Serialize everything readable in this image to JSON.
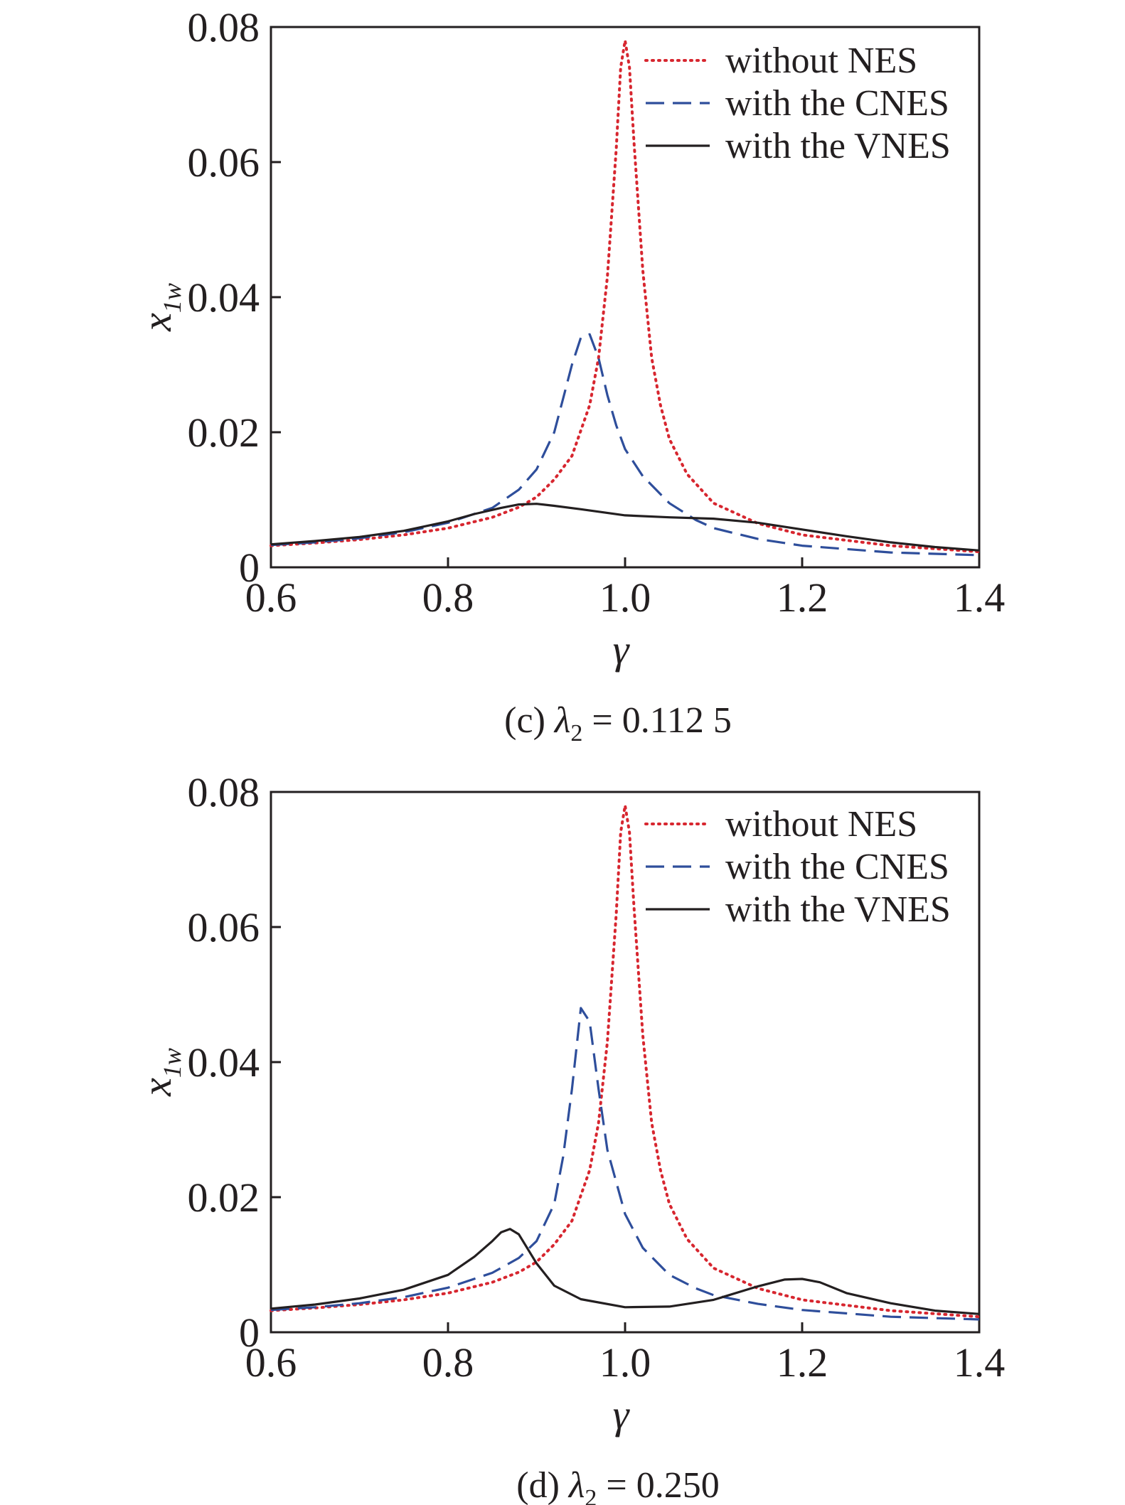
{
  "chart_data": [
    {
      "type": "line",
      "caption": {
        "prefix": "(c) ",
        "symbol": "λ",
        "subscript": "2",
        "value": " = 0.112 5"
      },
      "xlabel": "γ",
      "ylabel": {
        "base": "x",
        "subscript": "1w"
      },
      "xlim": [
        0.6,
        1.4
      ],
      "ylim": [
        0,
        0.08
      ],
      "xticks": [
        "0.6",
        "0.8",
        "1.0",
        "1.2",
        "1.4"
      ],
      "yticks": [
        "0",
        "0.02",
        "0.04",
        "0.06",
        "0.08"
      ],
      "grid": false,
      "legend": "top-right",
      "series": [
        {
          "name": "without NES",
          "color": "#d7262f",
          "style": "dotted",
          "x": [
            0.6,
            0.65,
            0.7,
            0.75,
            0.8,
            0.85,
            0.88,
            0.9,
            0.92,
            0.94,
            0.96,
            0.97,
            0.98,
            0.99,
            0.995,
            1.0,
            1.005,
            1.01,
            1.02,
            1.03,
            1.04,
            1.05,
            1.07,
            1.1,
            1.15,
            1.2,
            1.3,
            1.4
          ],
          "y": [
            0.0032,
            0.0036,
            0.0041,
            0.0048,
            0.0058,
            0.0074,
            0.0089,
            0.0104,
            0.013,
            0.0165,
            0.024,
            0.031,
            0.043,
            0.062,
            0.074,
            0.078,
            0.074,
            0.063,
            0.044,
            0.031,
            0.024,
            0.019,
            0.0138,
            0.0095,
            0.0065,
            0.0048,
            0.0032,
            0.0023
          ]
        },
        {
          "name": "with the CNES",
          "color": "#2e4e9b",
          "style": "dashed",
          "x": [
            0.6,
            0.65,
            0.7,
            0.75,
            0.8,
            0.85,
            0.88,
            0.9,
            0.92,
            0.93,
            0.94,
            0.95,
            0.96,
            0.97,
            0.98,
            0.99,
            1.0,
            1.02,
            1.05,
            1.08,
            1.1,
            1.15,
            1.2,
            1.3,
            1.4
          ],
          "y": [
            0.0033,
            0.0037,
            0.0043,
            0.0052,
            0.0066,
            0.0088,
            0.0115,
            0.0145,
            0.02,
            0.025,
            0.03,
            0.034,
            0.0345,
            0.031,
            0.0255,
            0.021,
            0.0175,
            0.0135,
            0.0095,
            0.007,
            0.0058,
            0.0042,
            0.0032,
            0.0022,
            0.0018
          ]
        },
        {
          "name": "with the VNES",
          "color": "#231f20",
          "style": "solid",
          "x": [
            0.6,
            0.65,
            0.7,
            0.75,
            0.8,
            0.83,
            0.86,
            0.88,
            0.9,
            0.92,
            0.95,
            1.0,
            1.05,
            1.1,
            1.15,
            1.2,
            1.25,
            1.3,
            1.35,
            1.4
          ],
          "y": [
            0.0034,
            0.0039,
            0.0045,
            0.0054,
            0.0068,
            0.0079,
            0.0088,
            0.0093,
            0.0094,
            0.0091,
            0.0086,
            0.0077,
            0.0074,
            0.0072,
            0.0066,
            0.0056,
            0.0046,
            0.0037,
            0.003,
            0.0025
          ]
        }
      ]
    },
    {
      "type": "line",
      "caption": {
        "prefix": "(d) ",
        "symbol": "λ",
        "subscript": "2",
        "value": " = 0.250"
      },
      "xlabel": "γ",
      "ylabel": {
        "base": "x",
        "subscript": "1w"
      },
      "xlim": [
        0.6,
        1.4
      ],
      "ylim": [
        0,
        0.08
      ],
      "xticks": [
        "0.6",
        "0.8",
        "1.0",
        "1.2",
        "1.4"
      ],
      "yticks": [
        "0",
        "0.02",
        "0.04",
        "0.06",
        "0.08"
      ],
      "grid": false,
      "legend": "top-right",
      "series": [
        {
          "name": "without NES",
          "color": "#d7262f",
          "style": "dotted",
          "x": [
            0.6,
            0.65,
            0.7,
            0.75,
            0.8,
            0.85,
            0.88,
            0.9,
            0.92,
            0.94,
            0.96,
            0.97,
            0.98,
            0.99,
            0.995,
            1.0,
            1.005,
            1.01,
            1.02,
            1.03,
            1.04,
            1.05,
            1.07,
            1.1,
            1.15,
            1.2,
            1.3,
            1.4
          ],
          "y": [
            0.0032,
            0.0036,
            0.0041,
            0.0048,
            0.0058,
            0.0074,
            0.0089,
            0.0104,
            0.013,
            0.0165,
            0.024,
            0.031,
            0.043,
            0.062,
            0.074,
            0.078,
            0.074,
            0.063,
            0.044,
            0.031,
            0.024,
            0.019,
            0.0138,
            0.0095,
            0.0065,
            0.0048,
            0.0032,
            0.0023
          ]
        },
        {
          "name": "with the CNES",
          "color": "#2e4e9b",
          "style": "dashed",
          "x": [
            0.6,
            0.65,
            0.7,
            0.75,
            0.8,
            0.85,
            0.88,
            0.9,
            0.92,
            0.93,
            0.94,
            0.95,
            0.96,
            0.97,
            0.98,
            1.0,
            1.02,
            1.05,
            1.08,
            1.1,
            1.15,
            1.2,
            1.3,
            1.4
          ],
          "y": [
            0.0033,
            0.0037,
            0.0043,
            0.0052,
            0.0066,
            0.0088,
            0.011,
            0.0135,
            0.019,
            0.026,
            0.036,
            0.048,
            0.046,
            0.036,
            0.027,
            0.0175,
            0.0125,
            0.0085,
            0.0065,
            0.0055,
            0.0042,
            0.0033,
            0.0023,
            0.0019
          ]
        },
        {
          "name": "with the VNES",
          "color": "#231f20",
          "style": "solid",
          "x": [
            0.6,
            0.65,
            0.7,
            0.75,
            0.8,
            0.83,
            0.85,
            0.86,
            0.87,
            0.88,
            0.9,
            0.92,
            0.95,
            1.0,
            1.05,
            1.1,
            1.15,
            1.18,
            1.2,
            1.22,
            1.25,
            1.3,
            1.35,
            1.4
          ],
          "y": [
            0.0035,
            0.0041,
            0.005,
            0.0063,
            0.0085,
            0.0112,
            0.0135,
            0.0148,
            0.0153,
            0.0145,
            0.0102,
            0.0069,
            0.0049,
            0.0037,
            0.0038,
            0.0048,
            0.0068,
            0.0078,
            0.0079,
            0.0074,
            0.0058,
            0.0043,
            0.0032,
            0.0027
          ]
        }
      ]
    }
  ]
}
